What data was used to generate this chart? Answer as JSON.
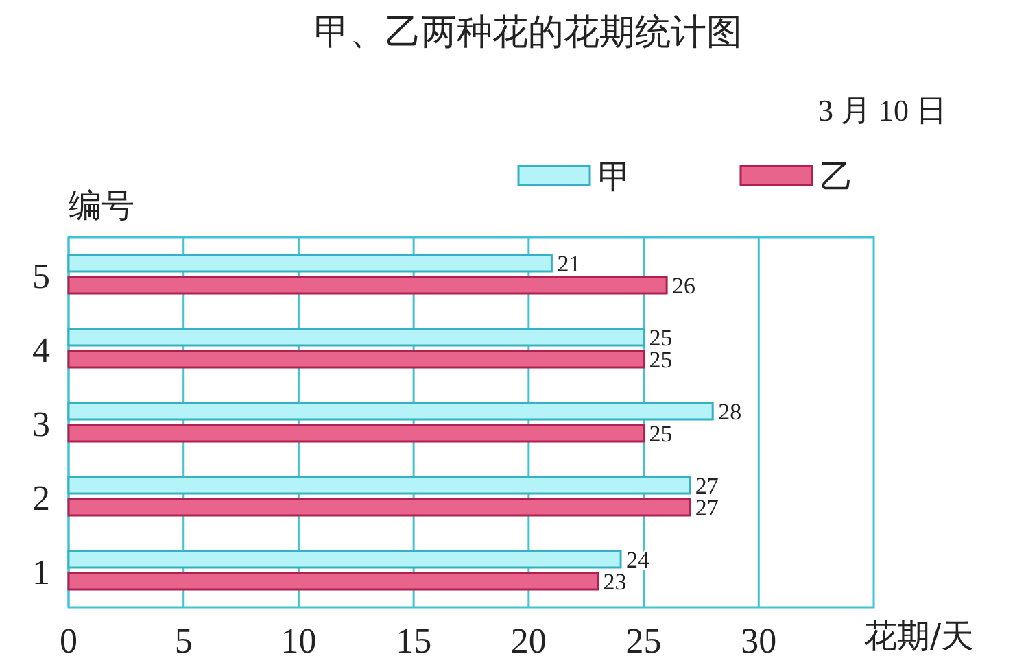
{
  "chart_data": {
    "type": "bar",
    "orientation": "horizontal",
    "title": "甲、乙两种花的花期统计图",
    "subtitle": "3 月 10 日",
    "ylabel": "编号",
    "xlabel": "花期/天",
    "categories": [
      "5",
      "4",
      "3",
      "2",
      "1"
    ],
    "series": [
      {
        "name": "甲",
        "color": "#b4f4f8",
        "values": [
          21,
          25,
          28,
          27,
          24
        ]
      },
      {
        "name": "乙",
        "color": "#e8648c",
        "values": [
          26,
          25,
          25,
          27,
          23
        ]
      }
    ],
    "xlim": [
      0,
      35
    ],
    "xticks": [
      0,
      5,
      10,
      15,
      20,
      25,
      30
    ],
    "grid": "x",
    "legend": "top right",
    "data_labels": true
  }
}
